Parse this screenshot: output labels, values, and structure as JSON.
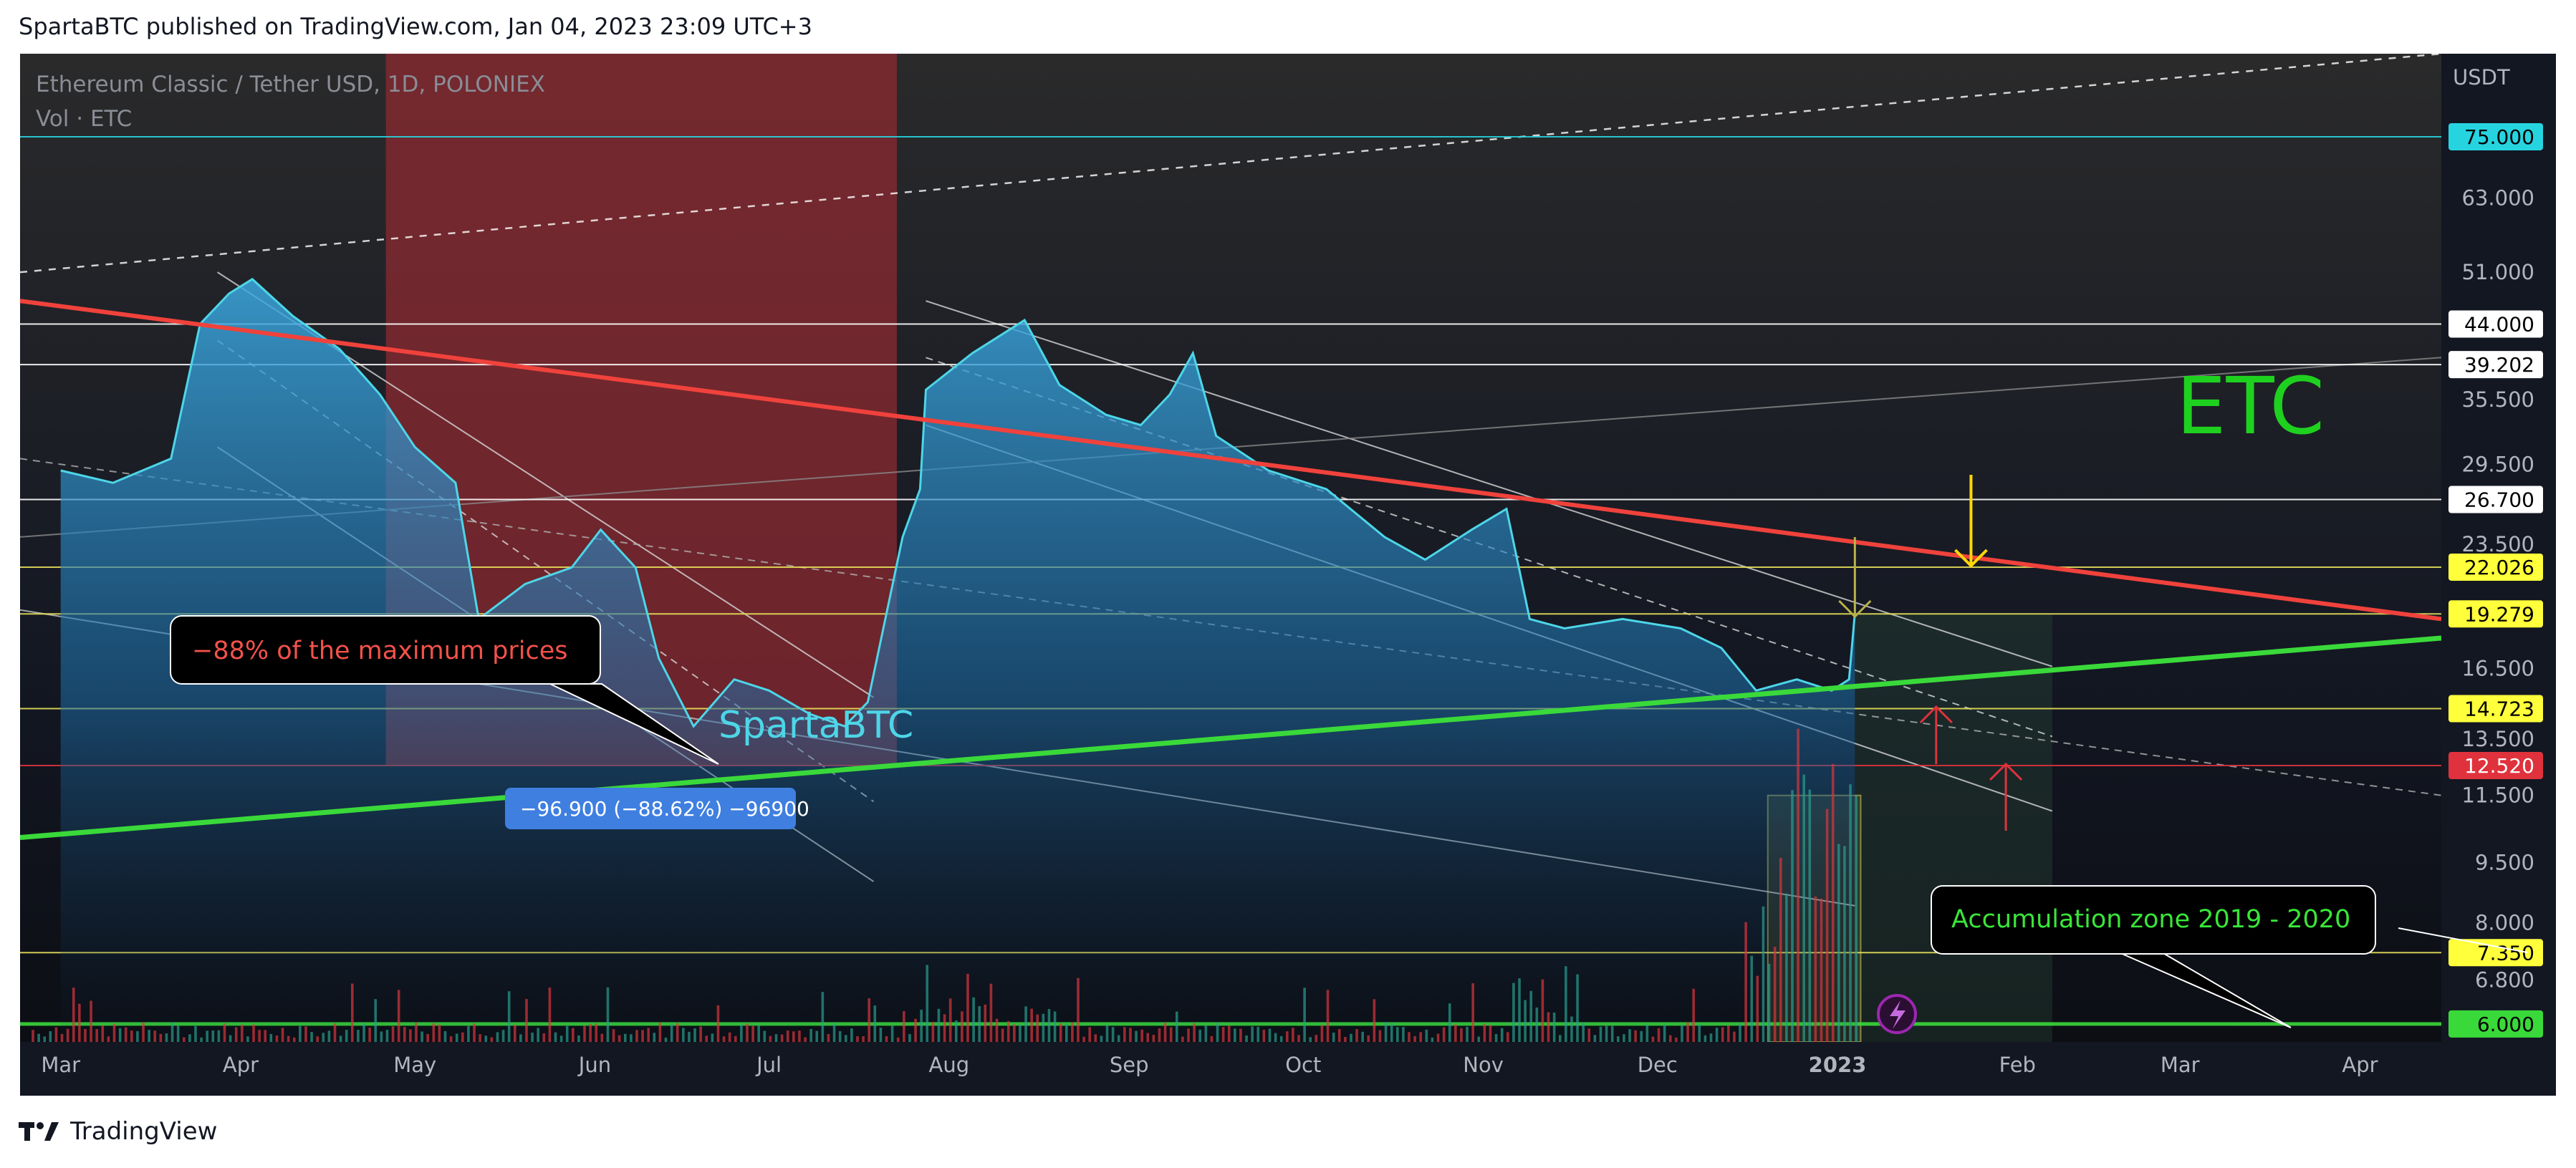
{
  "header": {
    "text": "SpartaBTC published on TradingView.com, Jan 04, 2023 23:09 UTC+3"
  },
  "footer": {
    "brand": "TradingView",
    "logo_icon": "tradingview-logo-icon"
  },
  "legend": {
    "symbol": "Ethereum Classic / Tether USD, 1D, POLONIEX",
    "volume": "Vol · ETC"
  },
  "labels": {
    "ticker": "ETC",
    "watermark": "SpartaBTC",
    "drawdown_callout": "−88% of the maximum prices",
    "measure": "−96.900 (−88.62%) −96900",
    "accumulation_callout": "Accumulation zone 2019 - 2020"
  },
  "colors": {
    "background": "#131722",
    "price_line": "#4dd6e8",
    "resistance_trend": "#f0423c",
    "support_trend": "#3ad93a",
    "ticker": "#1fd11f",
    "bearish_zone": "#8c2a30",
    "callout_text_red": "#f2524a",
    "callout_text_green": "#39e639",
    "measure_box": "#3f7fe0",
    "yellow_level": "#e6e05a",
    "red_level": "#e0323c",
    "cyan_level": "#26d4e0",
    "lightning_icon": "#9c27b0"
  },
  "chart_data": {
    "type": "line",
    "title": "Ethereum Classic / Tether USD, 1D, POLONIEX",
    "y_unit": "USDT",
    "y_scale": "log",
    "ylim": [
      5.7,
      95
    ],
    "x_ticks": [
      "Mar",
      "Apr",
      "May",
      "Jun",
      "Jul",
      "Aug",
      "Sep",
      "Oct",
      "Nov",
      "Dec",
      "2023",
      "Feb",
      "Mar",
      "Apr"
    ],
    "x_tick_dates": [
      "2022-03-01",
      "2022-04-01",
      "2022-05-01",
      "2022-06-01",
      "2022-07-01",
      "2022-08-01",
      "2022-09-01",
      "2022-10-01",
      "2022-11-01",
      "2022-12-01",
      "2023-01-01",
      "2023-02-01",
      "2023-03-01",
      "2023-04-01"
    ],
    "y_ticks": [
      63.0,
      51.0,
      35.5,
      29.5,
      23.5,
      16.5,
      13.5,
      11.5,
      9.5,
      8.0,
      6.8
    ],
    "price_levels": [
      {
        "value": 75.0,
        "label": "75.000",
        "kind": "cyan"
      },
      {
        "value": 44.0,
        "label": "44.000",
        "kind": "white"
      },
      {
        "value": 39.202,
        "label": "39.202",
        "kind": "white"
      },
      {
        "value": 26.7,
        "label": "26.700",
        "kind": "white"
      },
      {
        "value": 22.026,
        "label": "22.026",
        "kind": "yellow"
      },
      {
        "value": 19.279,
        "label": "19.279",
        "kind": "yellow"
      },
      {
        "value": 14.723,
        "label": "14.723",
        "kind": "yellow"
      },
      {
        "value": 12.52,
        "label": "12.520",
        "kind": "red"
      },
      {
        "value": 7.35,
        "label": "7.350",
        "kind": "yellow"
      },
      {
        "value": 6.0,
        "label": "6.000",
        "kind": "green"
      }
    ],
    "series": [
      {
        "name": "ETC / USDT",
        "points": [
          [
            "2022-03-01",
            29.0
          ],
          [
            "2022-03-10",
            28.0
          ],
          [
            "2022-03-20",
            30.0
          ],
          [
            "2022-03-25",
            44.0
          ],
          [
            "2022-03-30",
            48.0
          ],
          [
            "2022-04-03",
            50.0
          ],
          [
            "2022-04-10",
            45.0
          ],
          [
            "2022-04-18",
            41.0
          ],
          [
            "2022-04-25",
            36.0
          ],
          [
            "2022-05-01",
            31.0
          ],
          [
            "2022-05-08",
            28.0
          ],
          [
            "2022-05-12",
            19.0
          ],
          [
            "2022-05-20",
            21.0
          ],
          [
            "2022-05-28",
            22.0
          ],
          [
            "2022-06-02",
            24.5
          ],
          [
            "2022-06-08",
            22.0
          ],
          [
            "2022-06-12",
            17.0
          ],
          [
            "2022-06-18",
            14.0
          ],
          [
            "2022-06-25",
            16.0
          ],
          [
            "2022-07-01",
            15.5
          ],
          [
            "2022-07-08",
            14.5
          ],
          [
            "2022-07-14",
            14.0
          ],
          [
            "2022-07-18",
            15.0
          ],
          [
            "2022-07-24",
            24.0
          ],
          [
            "2022-07-27",
            27.5
          ],
          [
            "2022-07-28",
            36.5
          ],
          [
            "2022-08-05",
            40.5
          ],
          [
            "2022-08-14",
            44.5
          ],
          [
            "2022-08-20",
            37.0
          ],
          [
            "2022-08-28",
            34.0
          ],
          [
            "2022-09-03",
            33.0
          ],
          [
            "2022-09-08",
            36.0
          ],
          [
            "2022-09-12",
            40.5
          ],
          [
            "2022-09-16",
            32.0
          ],
          [
            "2022-09-25",
            29.0
          ],
          [
            "2022-10-05",
            27.5
          ],
          [
            "2022-10-15",
            24.0
          ],
          [
            "2022-10-22",
            22.5
          ],
          [
            "2022-10-30",
            24.5
          ],
          [
            "2022-11-05",
            26.0
          ],
          [
            "2022-11-09",
            19.0
          ],
          [
            "2022-11-15",
            18.5
          ],
          [
            "2022-11-25",
            19.0
          ],
          [
            "2022-12-05",
            18.5
          ],
          [
            "2022-12-12",
            17.5
          ],
          [
            "2022-12-18",
            15.5
          ],
          [
            "2022-12-25",
            16.0
          ],
          [
            "2022-12-31",
            15.5
          ],
          [
            "2023-01-03",
            16.0
          ],
          [
            "2023-01-04",
            19.3
          ]
        ]
      },
      {
        "name": "Vol · ETC"
      }
    ],
    "annotations": [
      "ETC",
      "−88% of the maximum prices",
      "−96.900 (−88.62%) −96900",
      "Accumulation zone 2019 - 2020",
      "SpartaBTC"
    ]
  }
}
